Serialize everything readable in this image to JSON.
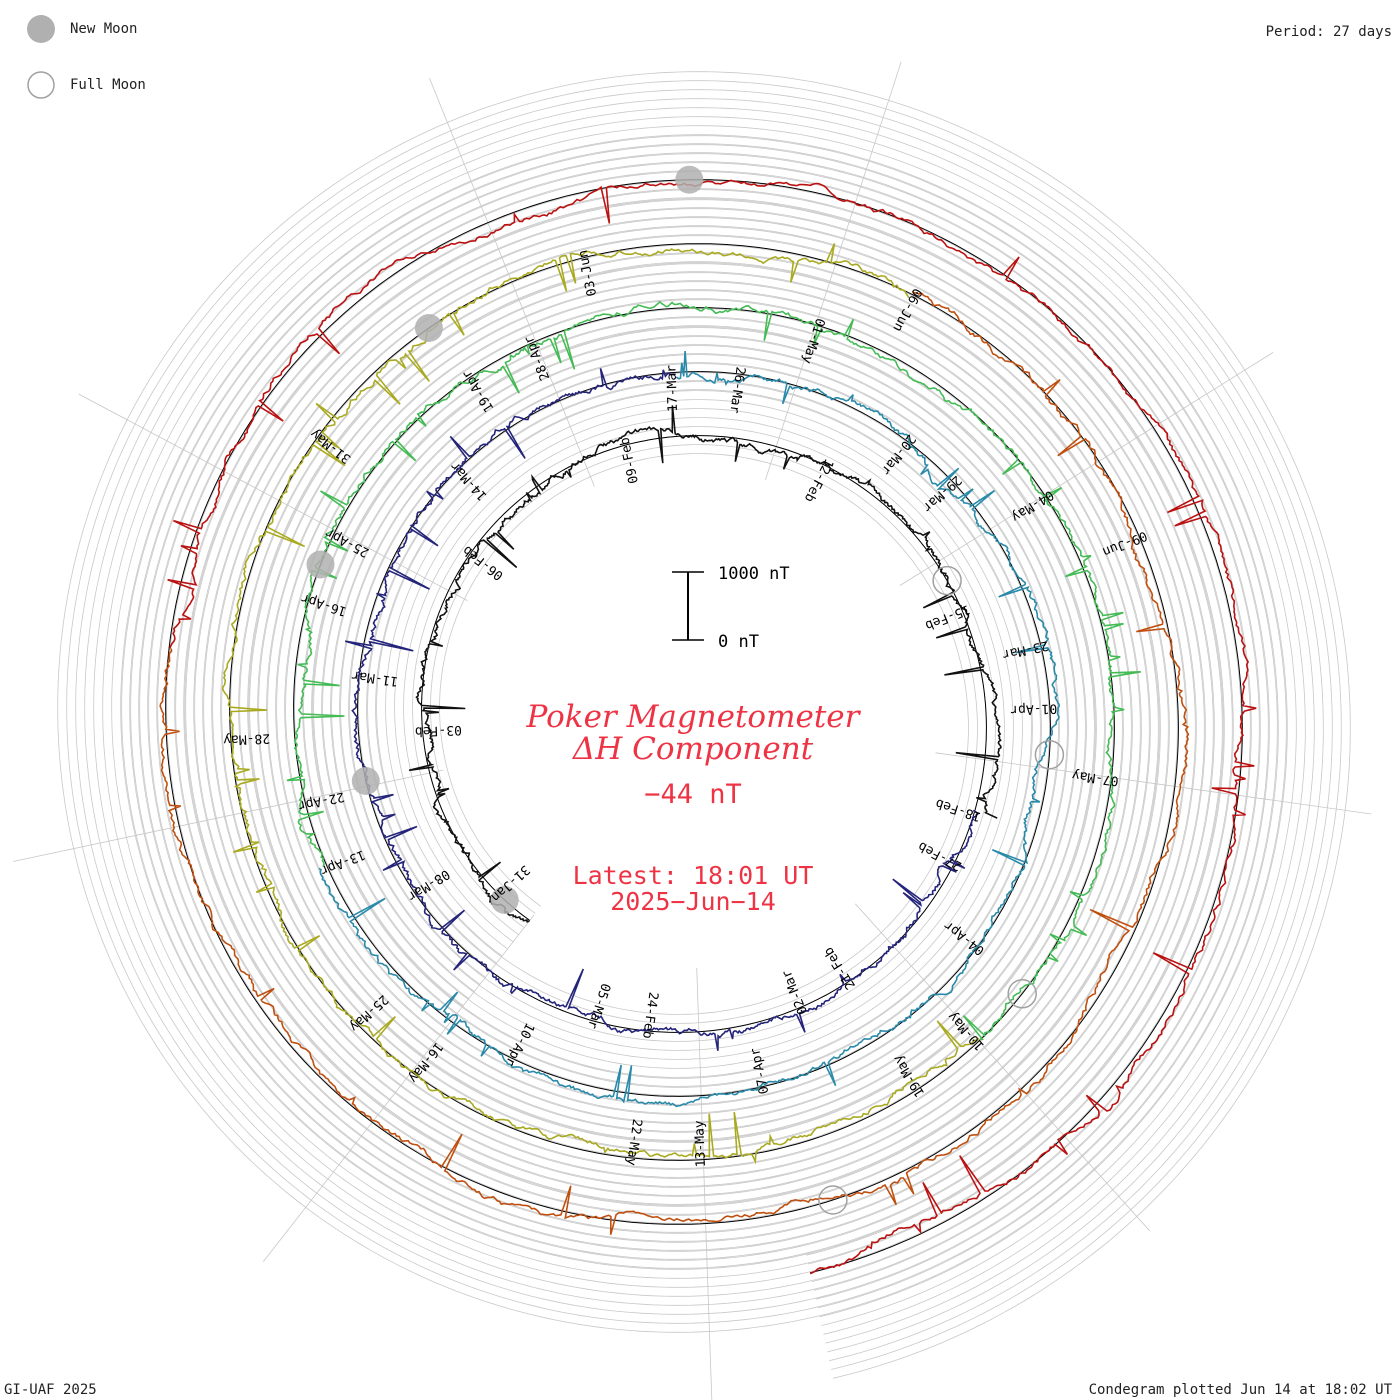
{
  "legend": {
    "new_moon_label": "New Moon",
    "full_moon_label": "Full Moon",
    "new_moon_color": "#b0b0b0",
    "full_moon_color": "#a0a0a0"
  },
  "period_label": "Period: 27 days",
  "footer_left": "GI-UAF 2025",
  "footer_right": "Condegram plotted Jun 14 at 18:02 UT",
  "scale": {
    "top_label": "1000 nT",
    "bottom_label": "0 nT"
  },
  "center": {
    "title_line1": "Poker Magnetometer",
    "title_line2": "ΔH Component",
    "value": "−44 nT",
    "latest_line1": "Latest: 18:01 UT",
    "latest_line2": "2025−Jun−14",
    "text_color": "#ee3344"
  },
  "chart_data": {
    "type": "line",
    "title": "Poker Magnetometer ΔH Component",
    "period_days": 27,
    "units": "nT",
    "start_date": "2025-01-29",
    "end_date": "2025-06-14",
    "grid": true,
    "rotations": [
      {
        "color": "#111111",
        "date_labels": [
          "31-Jan",
          "03-Feb",
          "06-Feb",
          "09-Feb",
          "12-Feb",
          "15-Feb",
          "18-Feb",
          "21-Feb",
          "24-Feb"
        ]
      },
      {
        "color": "#24247a",
        "date_labels": [
          "27-Feb",
          "02-Mar",
          "05-Mar",
          "08-Mar",
          "11-Mar",
          "14-Mar",
          "17-Mar",
          "20-Mar",
          "23-Mar"
        ]
      },
      {
        "color": "#2a8aaa",
        "date_labels": [
          "26-Mar",
          "29-Mar",
          "01-Apr",
          "04-Apr",
          "07-Apr",
          "10-Apr",
          "13-Apr",
          "16-Apr",
          "19-Apr"
        ]
      },
      {
        "color": "#44bb55",
        "date_labels": [
          "22-Apr",
          "25-Apr",
          "28-Apr",
          "01-May",
          "04-May",
          "07-May",
          "10-May",
          "13-May",
          "16-May"
        ]
      },
      {
        "color": "#aaaa22",
        "date_labels": [
          "19-May",
          "22-May",
          "25-May",
          "28-May",
          "31-May",
          "03-Jun",
          "06-Jun",
          "09-Jun"
        ]
      },
      {
        "color": "#c05010",
        "date_labels": []
      },
      {
        "color": "#bb1111",
        "date_labels": []
      }
    ],
    "new_moon_dates": [
      "Jan-29",
      "Feb-28",
      "Mar-29",
      "Apr-27",
      "May-27"
    ],
    "full_moon_dates": [
      "Feb-12",
      "Mar-14",
      "Apr-13",
      "May-12",
      "Jun-11"
    ],
    "latest_value": -44,
    "latest_time": "2025-06-14 18:01 UT"
  }
}
